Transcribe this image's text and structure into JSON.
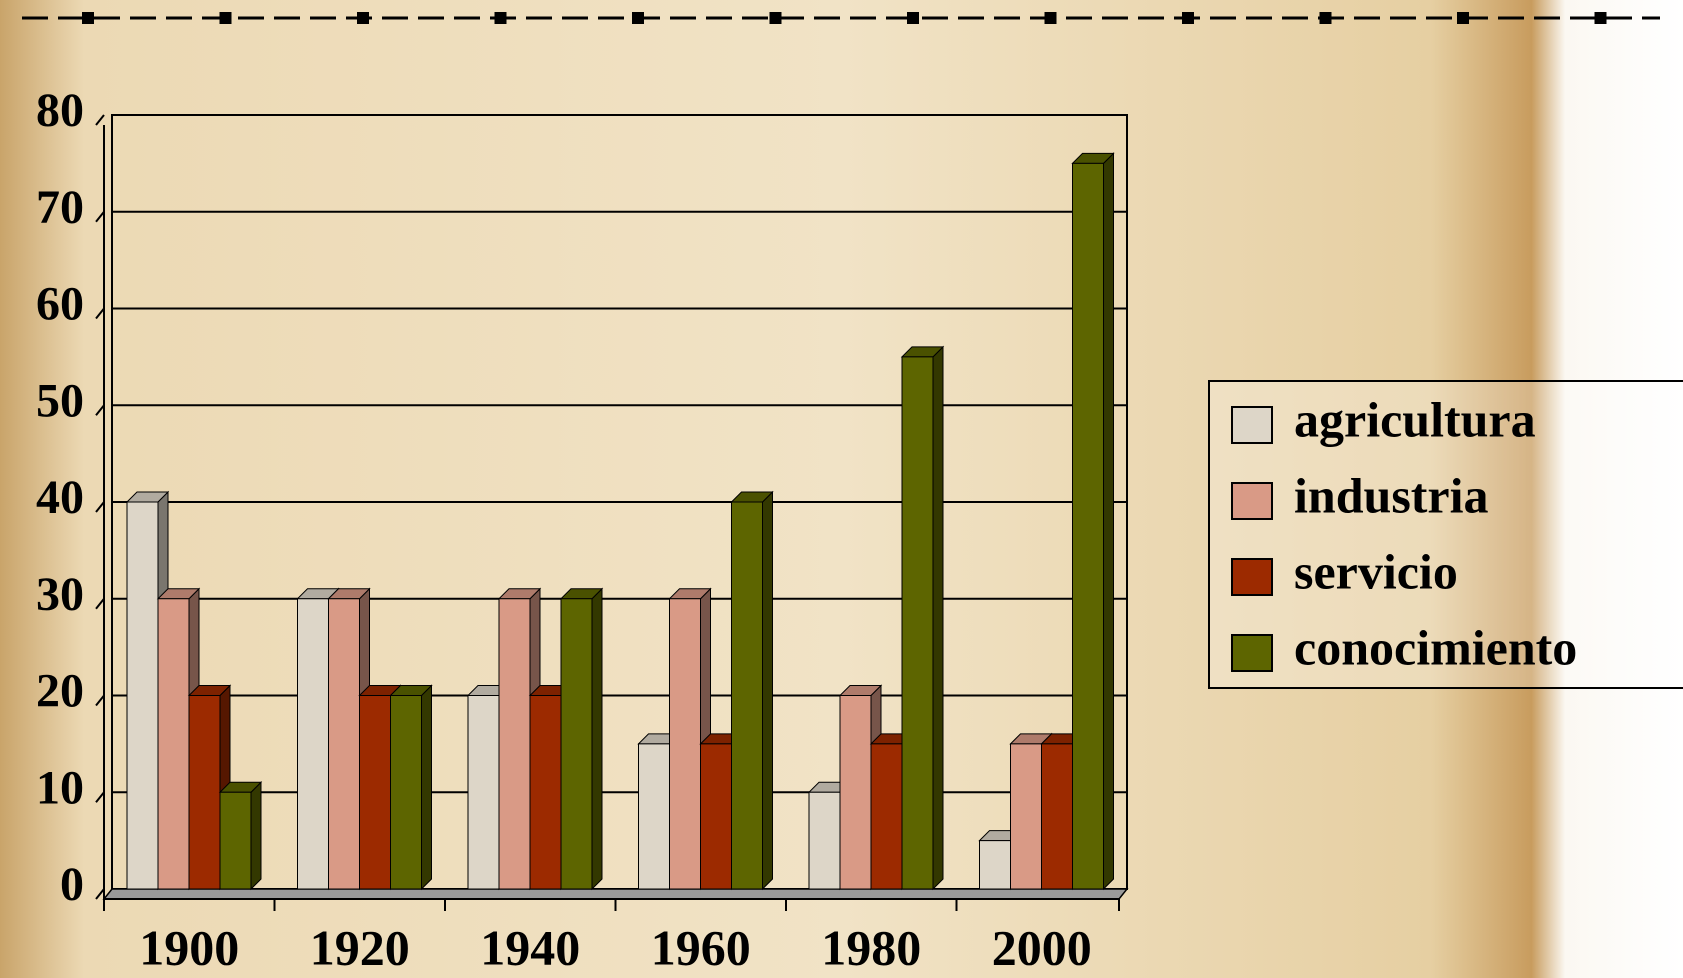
{
  "chart_data": {
    "type": "bar3d",
    "categories": [
      "1900",
      "1920",
      "1940",
      "1960",
      "1980",
      "2000"
    ],
    "series": [
      {
        "name": "agricultura",
        "color": "#ddd6c8",
        "values": [
          40,
          30,
          20,
          15,
          10,
          5
        ]
      },
      {
        "name": "industria",
        "color": "#d99a86",
        "values": [
          30,
          30,
          30,
          30,
          20,
          15
        ]
      },
      {
        "name": "servicio",
        "color": "#9c2a00",
        "values": [
          20,
          20,
          20,
          15,
          15,
          15
        ]
      },
      {
        "name": "conocimiento",
        "color": "#5d6500",
        "values": [
          10,
          20,
          30,
          40,
          55,
          75
        ]
      }
    ],
    "ylim": [
      0,
      80
    ],
    "yticks": [
      0,
      10,
      20,
      30,
      40,
      50,
      60,
      70,
      80
    ],
    "grid": true,
    "legend": "right"
  }
}
